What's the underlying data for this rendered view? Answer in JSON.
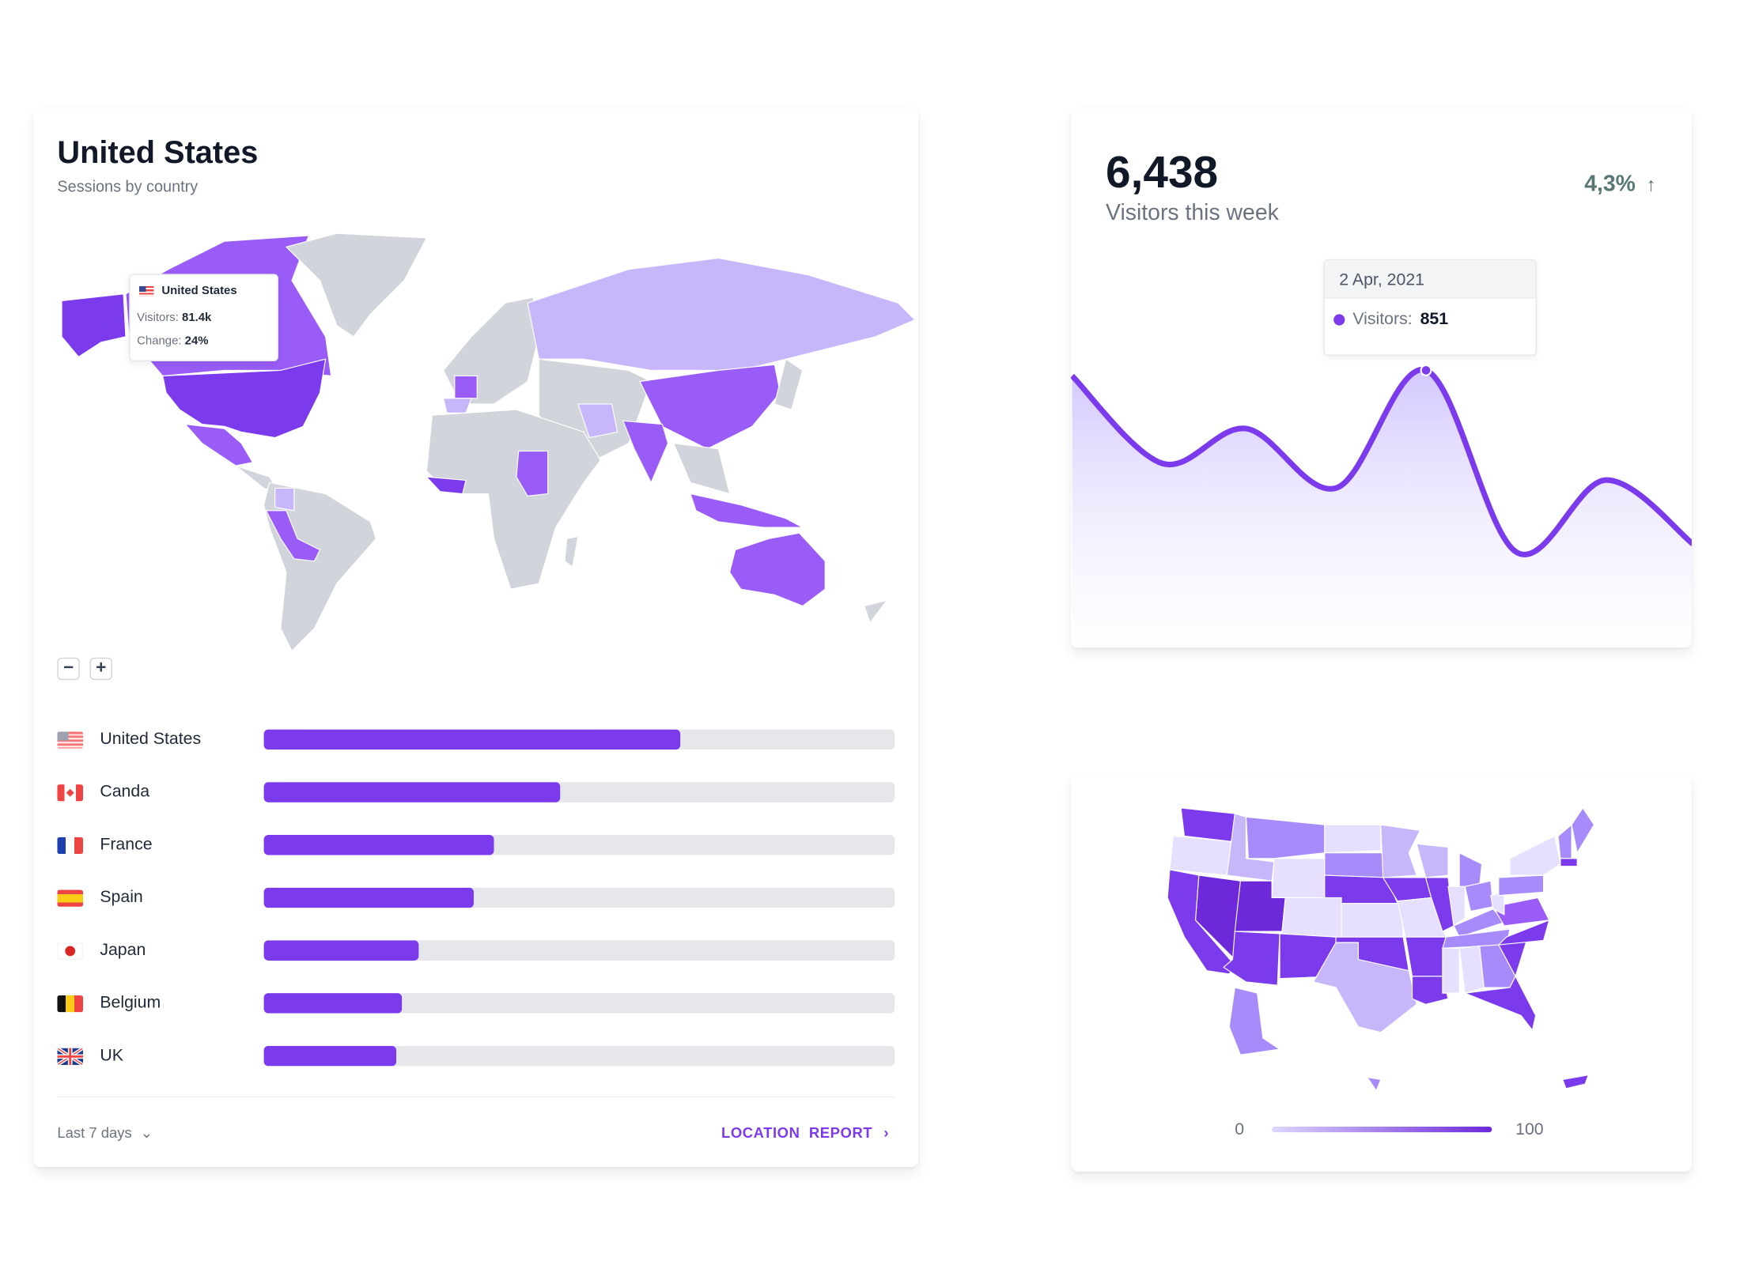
{
  "location_card": {
    "title": "United States",
    "subtitle": "Sessions by country",
    "map_tooltip": {
      "country": "United States",
      "visitors_label": "Visitors:",
      "visitors_value": "81.4k",
      "change_label": "Change:",
      "change_value": "24%"
    },
    "zoom_out_label": "−",
    "zoom_in_label": "+",
    "countries": [
      {
        "name": "United States",
        "flag": "us-flag",
        "share": 0.66
      },
      {
        "name": "Canda",
        "flag": "canada-flag",
        "share": 0.47
      },
      {
        "name": "France",
        "flag": "france-flag",
        "share": 0.365
      },
      {
        "name": "Spain",
        "flag": "spain-flag",
        "share": 0.333
      },
      {
        "name": "Japan",
        "flag": "japan-flag",
        "share": 0.245
      },
      {
        "name": "Belgium",
        "flag": "belgium-flag",
        "share": 0.219
      },
      {
        "name": "UK",
        "flag": "uk-flag",
        "share": 0.21
      }
    ],
    "range_label": "Last 7 days",
    "report_link": "LOCATION  REPORT",
    "world_levels": {
      "alaska": 85,
      "canada": 65,
      "greenland": null,
      "usa": 85,
      "mexico": 65,
      "central_america": null,
      "south_america": null,
      "peru_bolivia": 65,
      "colombia": 30,
      "europe": null,
      "france": 65,
      "spain": 30,
      "russia": 30,
      "middle_asia": null,
      "iran": 30,
      "china": 65,
      "india": 65,
      "se_asia": null,
      "indonesia": 65,
      "africa": null,
      "sudan": 65,
      "west_africa": 85,
      "madagascar": null,
      "australia": 65,
      "japan": null,
      "new_zealand": null
    }
  },
  "visitors_card": {
    "total": "6,438",
    "label": "Visitors this week",
    "change": "4,3%",
    "change_icon": "arrow-up-icon",
    "tooltip": {
      "date": "2 Apr, 2021",
      "label": "Visitors:",
      "value": "851"
    }
  },
  "chart_data": {
    "type": "area",
    "series": [
      {
        "name": "Visitors",
        "values": [
          834,
          565,
          672,
          490,
          851,
          293,
          514,
          318
        ]
      }
    ],
    "highlighted_index": 4,
    "highlighted_date": "2 Apr, 2021",
    "ylim": [
      0,
      851
    ],
    "grid": false,
    "color": "#7c3aed"
  },
  "us_card": {
    "legend_min": "0",
    "legend_max": "100",
    "state_levels": {
      "WA": 85,
      "OR": 15,
      "CA": 85,
      "NV": 95,
      "ID": 30,
      "MT": 50,
      "WY": 15,
      "UT": 95,
      "CO": 15,
      "AZ": 85,
      "NM": 85,
      "ND": 15,
      "SD": 50,
      "NE": 85,
      "KS": 15,
      "OK": 85,
      "TX": 30,
      "MN": 30,
      "IA": 85,
      "MO": 15,
      "AR": 85,
      "LA": 85,
      "WI": 30,
      "IL": 85,
      "MI": 50,
      "IN": 15,
      "OH": 50,
      "KY": 50,
      "TN": 50,
      "MS": 15,
      "AL": 15,
      "GA": 50,
      "FL": 85,
      "SC": 85,
      "NC": 85,
      "VA": 65,
      "WV": 15,
      "PA": 50,
      "NY": 15,
      "VT": 50,
      "ME": 50,
      "MA": 85,
      "AK": 50,
      "HI": 50,
      "PR": 85
    }
  },
  "colors": {
    "accent": "#7c3aed",
    "track": "#e5e7eb",
    "no_data": "#d1d5db",
    "change": "#5b7676"
  }
}
